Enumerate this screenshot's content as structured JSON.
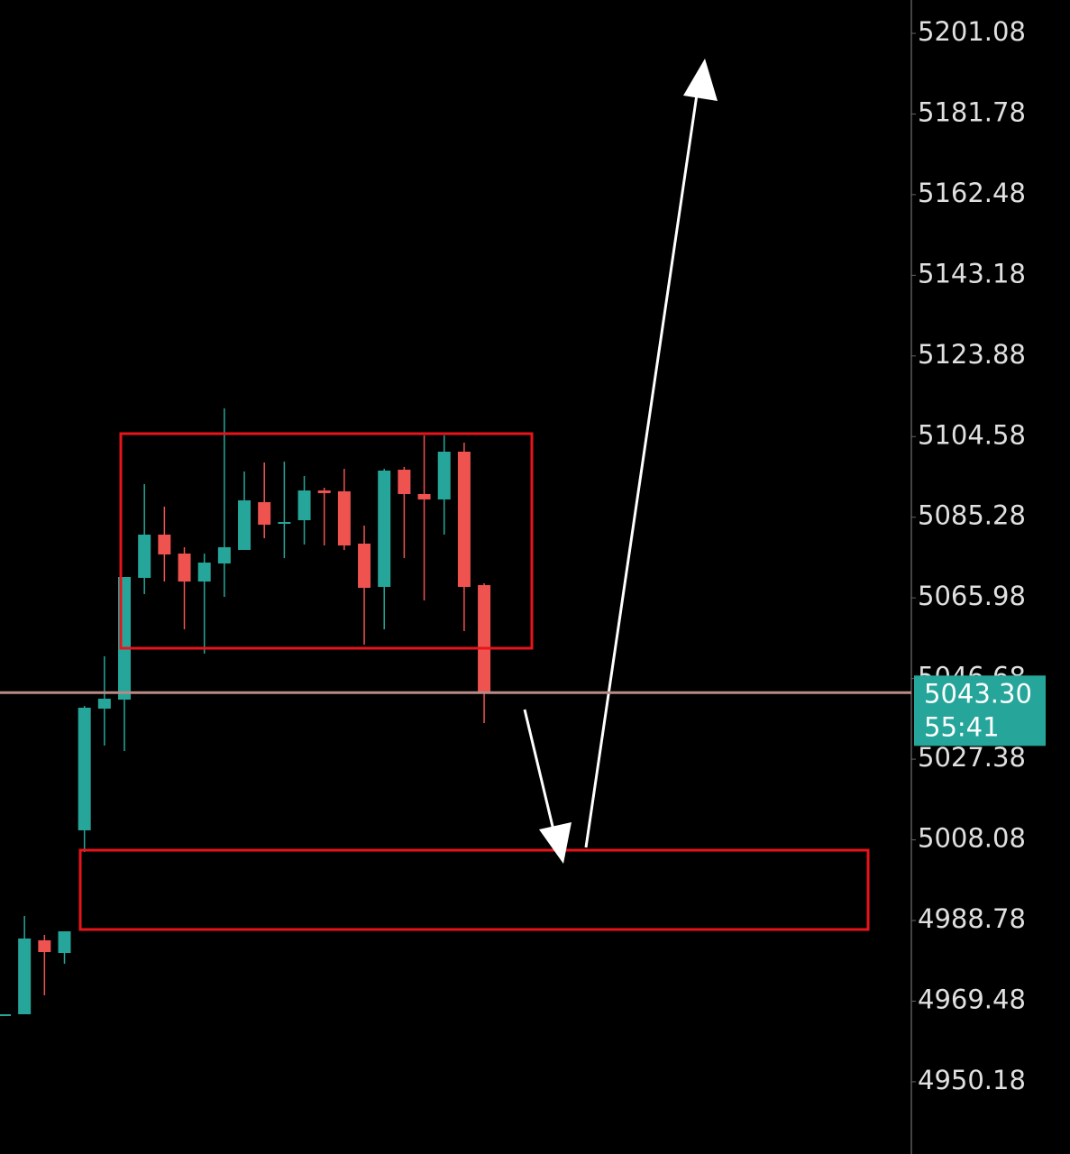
{
  "chart_data": {
    "type": "candlestick",
    "categories": [
      null,
      null,
      null,
      null,
      null,
      null,
      null,
      null,
      null,
      null,
      null,
      null,
      null,
      null,
      null,
      null,
      null,
      null,
      null,
      null,
      null,
      null,
      null,
      null,
      null
    ],
    "open": [
      4966.13,
      4966.34,
      4984.04,
      4981.01,
      5010.36,
      5039.48,
      5041.64,
      5070.77,
      5081.12,
      5076.59,
      5069.9,
      5074.22,
      5077.46,
      5088.89,
      5083.71,
      5084.57,
      5091.69,
      5091.48,
      5078.97,
      5068.61,
      5096.66,
      5090.83,
      5089.54,
      5100.97,
      5069.04
    ],
    "high": [
      4966.34,
      4989.86,
      4985.33,
      4986.19,
      5040.13,
      5052.0,
      5070.98,
      5093.2,
      5087.81,
      5078.1,
      5076.59,
      5111.33,
      5096.23,
      5098.38,
      5098.6,
      5095.15,
      5092.34,
      5096.87,
      5083.28,
      5096.87,
      5097.3,
      5104.86,
      5104.86,
      5103.13,
      5069.47
    ],
    "low": [
      4966.13,
      4966.34,
      4970.87,
      4978.43,
      5005.18,
      5030.64,
      5029.34,
      5066.88,
      5069.9,
      5058.47,
      5052.64,
      5066.24,
      5077.46,
      5080.26,
      5075.51,
      5078.75,
      5078.53,
      5077.46,
      5054.8,
      5058.47,
      5075.51,
      5065.37,
      5081.12,
      5058.04,
      5036.03
    ],
    "close": [
      4966.34,
      4984.47,
      4981.23,
      4986.19,
      5039.7,
      5041.86,
      5070.98,
      5081.12,
      5076.38,
      5069.9,
      5074.43,
      5078.1,
      5089.32,
      5083.5,
      5084.14,
      5091.69,
      5091.05,
      5078.53,
      5068.39,
      5096.44,
      5090.83,
      5089.54,
      5100.97,
      5068.61,
      5043.3
    ],
    "up_color": "#26a69a",
    "down_color": "#ef5350",
    "ylim": [
      4932.9,
      5209.06
    ],
    "yticks": [
      5201.08,
      5181.78,
      5162.48,
      5143.18,
      5123.88,
      5104.58,
      5085.28,
      5065.98,
      5046.68,
      5027.38,
      5008.08,
      4988.78,
      4969.48,
      4950.18
    ],
    "last_price": {
      "value": 5043.3,
      "label": "5043.30"
    },
    "countdown": "55:41"
  }
}
